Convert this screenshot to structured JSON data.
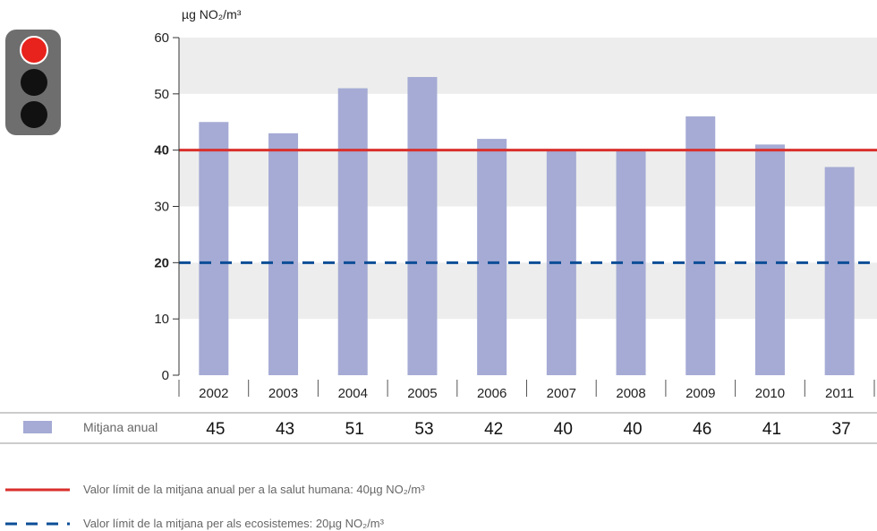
{
  "unit_label": "µg NO₂/m³",
  "colors": {
    "bar": "#a5abd4",
    "band": "#ededed",
    "limit_health": "#d9302c",
    "limit_eco": "#0b4d96",
    "light_body": "#6e6e6e",
    "light_red": "#e8221c",
    "light_off": "#111111"
  },
  "traffic_light": {
    "icon": "traffic-light-icon",
    "active": "red"
  },
  "chart_data": {
    "type": "bar",
    "categories": [
      "2002",
      "2003",
      "2004",
      "2005",
      "2006",
      "2007",
      "2008",
      "2009",
      "2010",
      "2011"
    ],
    "series": [
      {
        "name": "Mitjana anual",
        "values": [
          45,
          43,
          51,
          53,
          42,
          40,
          40,
          46,
          41,
          37
        ]
      }
    ],
    "ylim": [
      0,
      60
    ],
    "yticks": [
      0,
      10,
      20,
      30,
      40,
      50,
      60
    ],
    "reference_lines": [
      {
        "value": 40,
        "style": "solid",
        "label": "Valor límit de la mitjana anual per a la salut humana: 40µg NO₂/m³"
      },
      {
        "value": 20,
        "style": "dashed",
        "label": "Valor límit de la mitjana per als ecosistemes: 20µg NO₂/m³"
      }
    ],
    "banded_background": true
  },
  "table": {
    "row_label": "Mitjana anual",
    "values": [
      "45",
      "43",
      "51",
      "53",
      "42",
      "40",
      "40",
      "46",
      "41",
      "37"
    ]
  },
  "legend": {
    "health": "Valor límit de la mitjana anual per a la salut humana: 40µg NO₂/m³",
    "eco": "Valor límit de la mitjana per als ecosistemes: 20µg NO₂/m³"
  }
}
